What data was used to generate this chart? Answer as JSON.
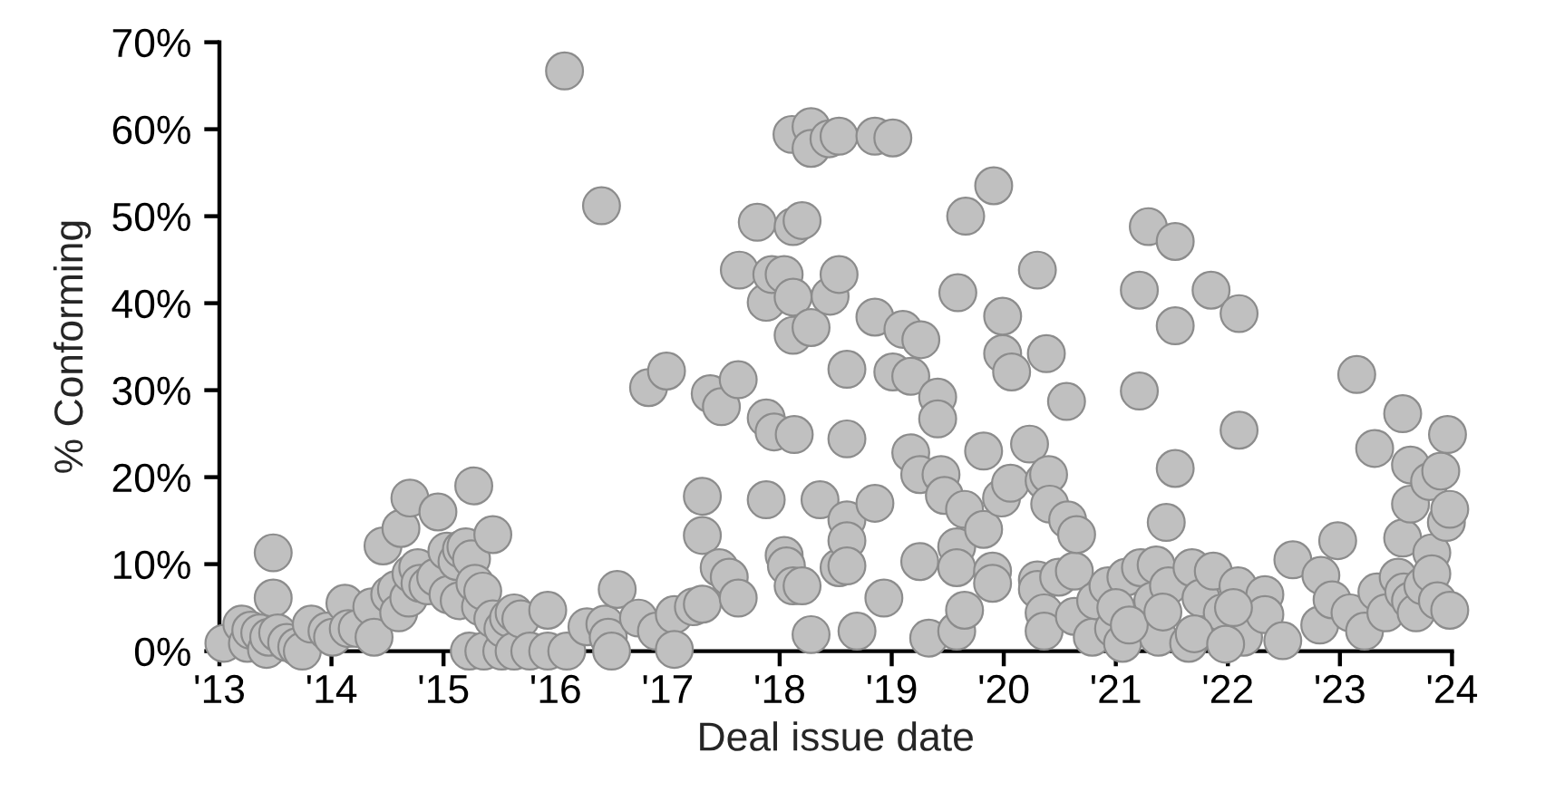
{
  "chart_data": {
    "type": "scatter",
    "xlabel": "Deal issue date",
    "ylabel": "% Conforming",
    "marker": "circle",
    "xlim": [
      2013,
      2024
    ],
    "xticks": [
      {
        "value": 2013,
        "label": "'13"
      },
      {
        "value": 2014,
        "label": "'14"
      },
      {
        "value": 2015,
        "label": "'15"
      },
      {
        "value": 2016,
        "label": "'16"
      },
      {
        "value": 2017,
        "label": "'17"
      },
      {
        "value": 2018,
        "label": "'18"
      },
      {
        "value": 2019,
        "label": "'19"
      },
      {
        "value": 2020,
        "label": "'20"
      },
      {
        "value": 2021,
        "label": "'21"
      },
      {
        "value": 2022,
        "label": "'22"
      },
      {
        "value": 2023,
        "label": "'23"
      },
      {
        "value": 2024,
        "label": "'24"
      }
    ],
    "ylim": [
      0,
      70
    ],
    "yticks": [
      {
        "value": 0,
        "label": "0%"
      },
      {
        "value": 10,
        "label": "10%"
      },
      {
        "value": 20,
        "label": "20%"
      },
      {
        "value": 30,
        "label": "30%"
      },
      {
        "value": 40,
        "label": "40%"
      },
      {
        "value": 50,
        "label": "50%"
      },
      {
        "value": 60,
        "label": "60%"
      },
      {
        "value": 70,
        "label": "70%"
      }
    ],
    "series": [
      {
        "color": "#c0c0c0",
        "x": [
          2013.04,
          2013.2,
          2013.25,
          2013.28,
          2013.36,
          2013.42,
          2013.44,
          2013.48,
          2013.48,
          2013.52,
          2013.6,
          2013.69,
          2013.74,
          2013.82,
          2013.96,
          2014.01,
          2014.12,
          2014.15,
          2014.23,
          2014.36,
          2014.38,
          2014.46,
          2014.52,
          2014.58,
          2014.6,
          2014.62,
          2014.69,
          2014.7,
          2014.71,
          2014.77,
          2014.79,
          2014.86,
          2014.93,
          2014.95,
          2015.03,
          2015.04,
          2015.12,
          2015.14,
          2015.16,
          2015.2,
          2015.23,
          2015.25,
          2015.27,
          2015.28,
          2015.33,
          2015.35,
          2015.36,
          2015.44,
          2015.44,
          2015.52,
          2015.53,
          2015.58,
          2015.63,
          2015.63,
          2015.69,
          2015.77,
          2015.93,
          2015.93,
          2016.08,
          2016.1,
          2016.28,
          2016.41,
          2016.44,
          2016.47,
          2016.5,
          2016.55,
          2016.74,
          2016.83,
          2016.9,
          2016.99,
          2017.06,
          2017.06,
          2017.23,
          2017.31,
          2017.31,
          2017.31,
          2017.38,
          2017.46,
          2017.48,
          2017.55,
          2017.63,
          2017.63,
          2017.64,
          2017.8,
          2017.88,
          2017.88,
          2017.88,
          2017.93,
          2017.95,
          2018.04,
          2018.04,
          2018.06,
          2018.11,
          2018.12,
          2018.12,
          2018.12,
          2018.12,
          2018.13,
          2018.2,
          2018.2,
          2018.28,
          2018.28,
          2018.28,
          2018.28,
          2018.36,
          2018.44,
          2018.45,
          2018.53,
          2018.53,
          2018.53,
          2018.6,
          2018.6,
          2018.6,
          2018.6,
          2018.6,
          2018.69,
          2018.85,
          2018.85,
          2018.85,
          2018.93,
          2019.01,
          2019.01,
          2019.1,
          2019.17,
          2019.17,
          2019.25,
          2019.25,
          2019.26,
          2019.33,
          2019.41,
          2019.41,
          2019.44,
          2019.47,
          2019.58,
          2019.58,
          2019.58,
          2019.59,
          2019.65,
          2019.65,
          2019.66,
          2019.82,
          2019.82,
          2019.9,
          2019.9,
          2019.91,
          2019.98,
          2019.99,
          2019.99,
          2020.06,
          2020.07,
          2020.23,
          2020.3,
          2020.3,
          2020.3,
          2020.36,
          2020.36,
          2020.36,
          2020.38,
          2020.4,
          2020.41,
          2020.49,
          2020.56,
          2020.57,
          2020.63,
          2020.63,
          2020.65,
          2020.79,
          2020.82,
          2020.93,
          2020.98,
          2021.06,
          2021.09,
          2021.21,
          2021.21,
          2021.22,
          2021.29,
          2021.33,
          2021.36,
          2021.38,
          2021.45,
          2021.47,
          2021.53,
          2021.53,
          2021.53,
          2021.65,
          2021.68,
          2021.76,
          2021.85,
          2021.87,
          2021.95,
          2022.09,
          2022.1,
          2022.1,
          2022.14,
          2022.33,
          2022.33,
          2022.49,
          2022.58,
          2022.82,
          2022.83,
          2022.93,
          2022.98,
          2023.09,
          2023.15,
          2023.22,
          2023.31,
          2023.33,
          2023.41,
          2023.52,
          2023.56,
          2023.56,
          2023.57,
          2023.63,
          2023.63,
          2023.63,
          2023.68,
          2023.74,
          2023.8,
          2023.82,
          2023.82,
          2023.87,
          2023.9,
          2023.95,
          2023.96,
          2023.98,
          2023.98,
          2021.0,
          2021.12,
          2021.42,
          2021.7,
          2021.98,
          2022.05
        ],
        "values": [
          0.9,
          3.1,
          0.9,
          2.4,
          2.1,
          0.2,
          1.6,
          11.3,
          6.1,
          2.1,
          1.0,
          0.5,
          0.0,
          3.1,
          2.3,
          1.6,
          5.5,
          2.6,
          2.6,
          5.1,
          1.6,
          12.1,
          6.5,
          7.1,
          4.4,
          14.1,
          6.1,
          17.6,
          8.9,
          9.6,
          7.8,
          7.5,
          8.5,
          16.0,
          11.5,
          6.5,
          10.3,
          5.8,
          11.7,
          12.0,
          0.0,
          10.6,
          19.0,
          7.8,
          5.1,
          6.9,
          0.0,
          13.4,
          3.7,
          0.0,
          2.6,
          3.8,
          0.0,
          4.4,
          3.7,
          0.0,
          4.7,
          0.0,
          66.7,
          0.0,
          2.8,
          51.2,
          3.1,
          1.6,
          0.0,
          7.1,
          3.8,
          30.3,
          2.3,
          32.2,
          4.2,
          0.2,
          5.1,
          17.8,
          13.3,
          5.4,
          29.6,
          9.6,
          28.1,
          8.5,
          31.2,
          6.1,
          43.8,
          49.3,
          40.1,
          26.8,
          17.4,
          43.3,
          25.2,
          43.3,
          11.0,
          9.8,
          59.4,
          48.8,
          40.7,
          36.3,
          7.5,
          24.9,
          49.5,
          7.5,
          60.3,
          57.8,
          37.2,
          1.9,
          17.4,
          58.9,
          40.8,
          59.2,
          43.3,
          9.6,
          32.4,
          24.4,
          15.1,
          12.7,
          9.8,
          2.3,
          59.2,
          38.4,
          17.0,
          6.1,
          59.0,
          32.1,
          37.0,
          31.6,
          22.8,
          20.3,
          10.3,
          35.8,
          1.5,
          29.2,
          26.7,
          20.3,
          17.9,
          12.0,
          9.6,
          2.3,
          41.2,
          16.3,
          4.7,
          50.0,
          23.0,
          14.0,
          9.2,
          7.8,
          53.5,
          17.6,
          38.5,
          34.2,
          19.3,
          32.1,
          23.8,
          43.8,
          8.2,
          7.1,
          19.6,
          4.4,
          2.3,
          34.2,
          20.3,
          16.9,
          8.5,
          28.7,
          15.1,
          9.2,
          4.0,
          13.4,
          1.6,
          5.8,
          7.5,
          2.6,
          0.9,
          8.5,
          41.5,
          29.9,
          9.6,
          48.8,
          5.8,
          9.9,
          1.6,
          14.8,
          7.5,
          47.1,
          37.4,
          21.0,
          0.9,
          9.6,
          6.1,
          41.5,
          9.2,
          4.4,
          7.5,
          38.8,
          25.4,
          1.6,
          6.5,
          4.2,
          1.2,
          10.5,
          3.0,
          8.7,
          5.9,
          12.7,
          4.4,
          31.8,
          2.3,
          23.3,
          6.8,
          4.4,
          8.5,
          27.3,
          13.0,
          6.8,
          21.4,
          16.9,
          5.8,
          4.4,
          7.5,
          19.5,
          11.3,
          8.9,
          5.8,
          20.7,
          14.8,
          24.9,
          4.7,
          16.3,
          5.0,
          3.0,
          4.5,
          2.0,
          0.8,
          5.0
        ]
      }
    ]
  }
}
